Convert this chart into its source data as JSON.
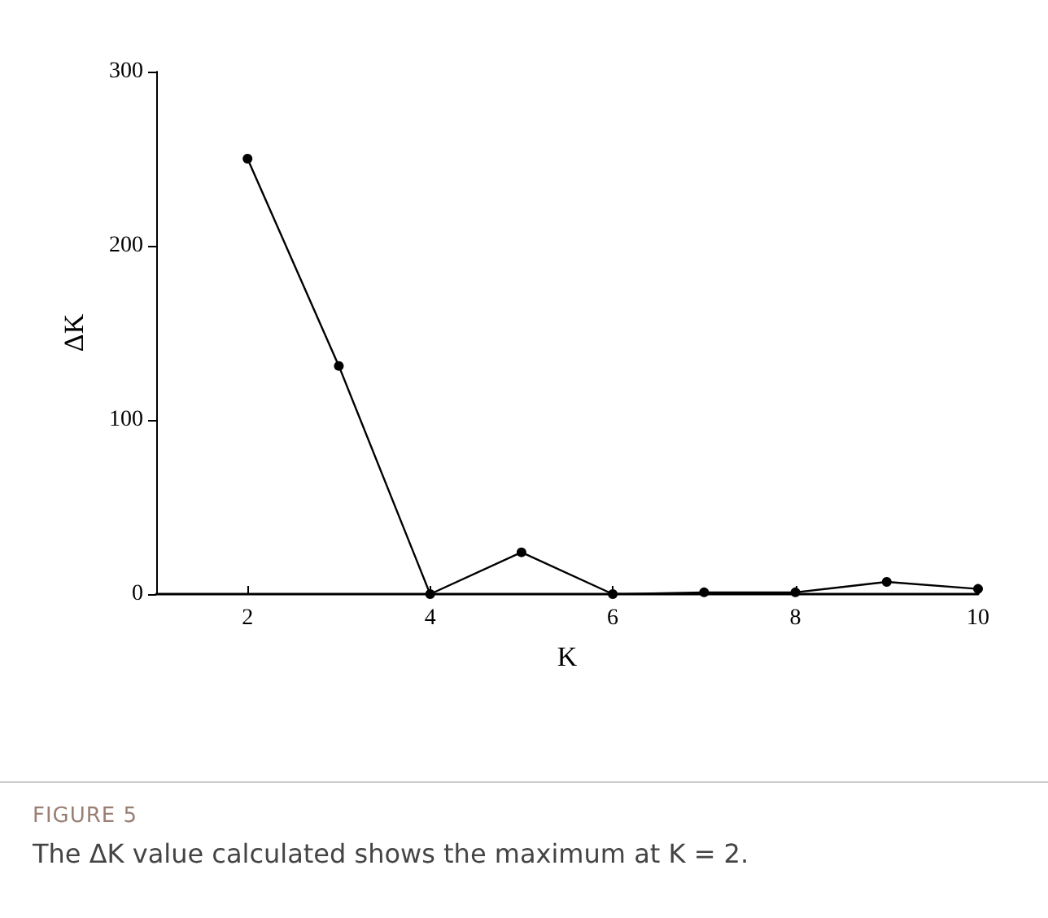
{
  "chart_data": {
    "type": "line",
    "xlabel": "K",
    "ylabel": "ΔK",
    "x": [
      2,
      3,
      4,
      5,
      6,
      7,
      8,
      9,
      10
    ],
    "series": [
      {
        "color": "#000000",
        "values": [
          250,
          131,
          0,
          24,
          0,
          1,
          1,
          7,
          3
        ]
      }
    ],
    "xlim": [
      1,
      10
    ],
    "xticks": [
      2,
      4,
      6,
      8,
      10
    ],
    "ylim": [
      0,
      300
    ],
    "yticks": [
      0,
      100,
      200,
      300
    ],
    "grid": false,
    "marker": "circle",
    "line_style": "solid",
    "annotations": [
      "FIGURE 5",
      "The ΔK value calculated shows the maximum at K = 2."
    ]
  }
}
